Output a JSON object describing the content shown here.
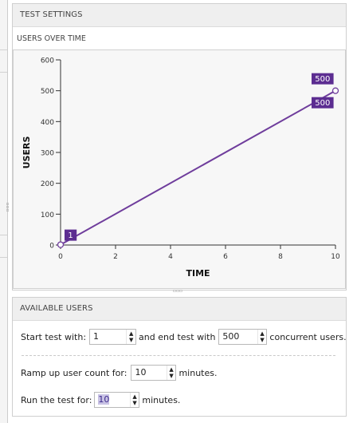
{
  "test_settings": {
    "header": "TEST SETTINGS",
    "chart_title": "USERS OVER TIME"
  },
  "chart_data": {
    "type": "line",
    "xlabel": "TIME",
    "ylabel": "USERS",
    "xlim": [
      0,
      10
    ],
    "ylim": [
      0,
      600
    ],
    "x_ticks": [
      "0",
      "2",
      "4",
      "6",
      "8",
      "10"
    ],
    "y_ticks": [
      "0",
      "100",
      "200",
      "300",
      "400",
      "500",
      "600"
    ],
    "series": [
      {
        "x": [
          0,
          10
        ],
        "y": [
          1,
          500
        ]
      }
    ],
    "data_labels": {
      "start": "1",
      "end_top": "500",
      "end_bottom": "500"
    },
    "line_color": "#6f3d9c",
    "label_bg": "#5c2d91",
    "grid": false
  },
  "available_users": {
    "header": "AVAILABLE USERS",
    "start_label": "Start test with:",
    "start_value": "1",
    "end_label": "and end test with",
    "end_value": "500",
    "end_suffix": "concurrent users.",
    "ramp_label": "Ramp up user count for:",
    "ramp_value": "10",
    "ramp_suffix": "minutes.",
    "run_label": "Run the test for:",
    "run_value": "10",
    "run_suffix": "minutes."
  },
  "icons": {
    "spinner_up": "▲",
    "spinner_down": "▼",
    "grip": "▫▫▫"
  }
}
